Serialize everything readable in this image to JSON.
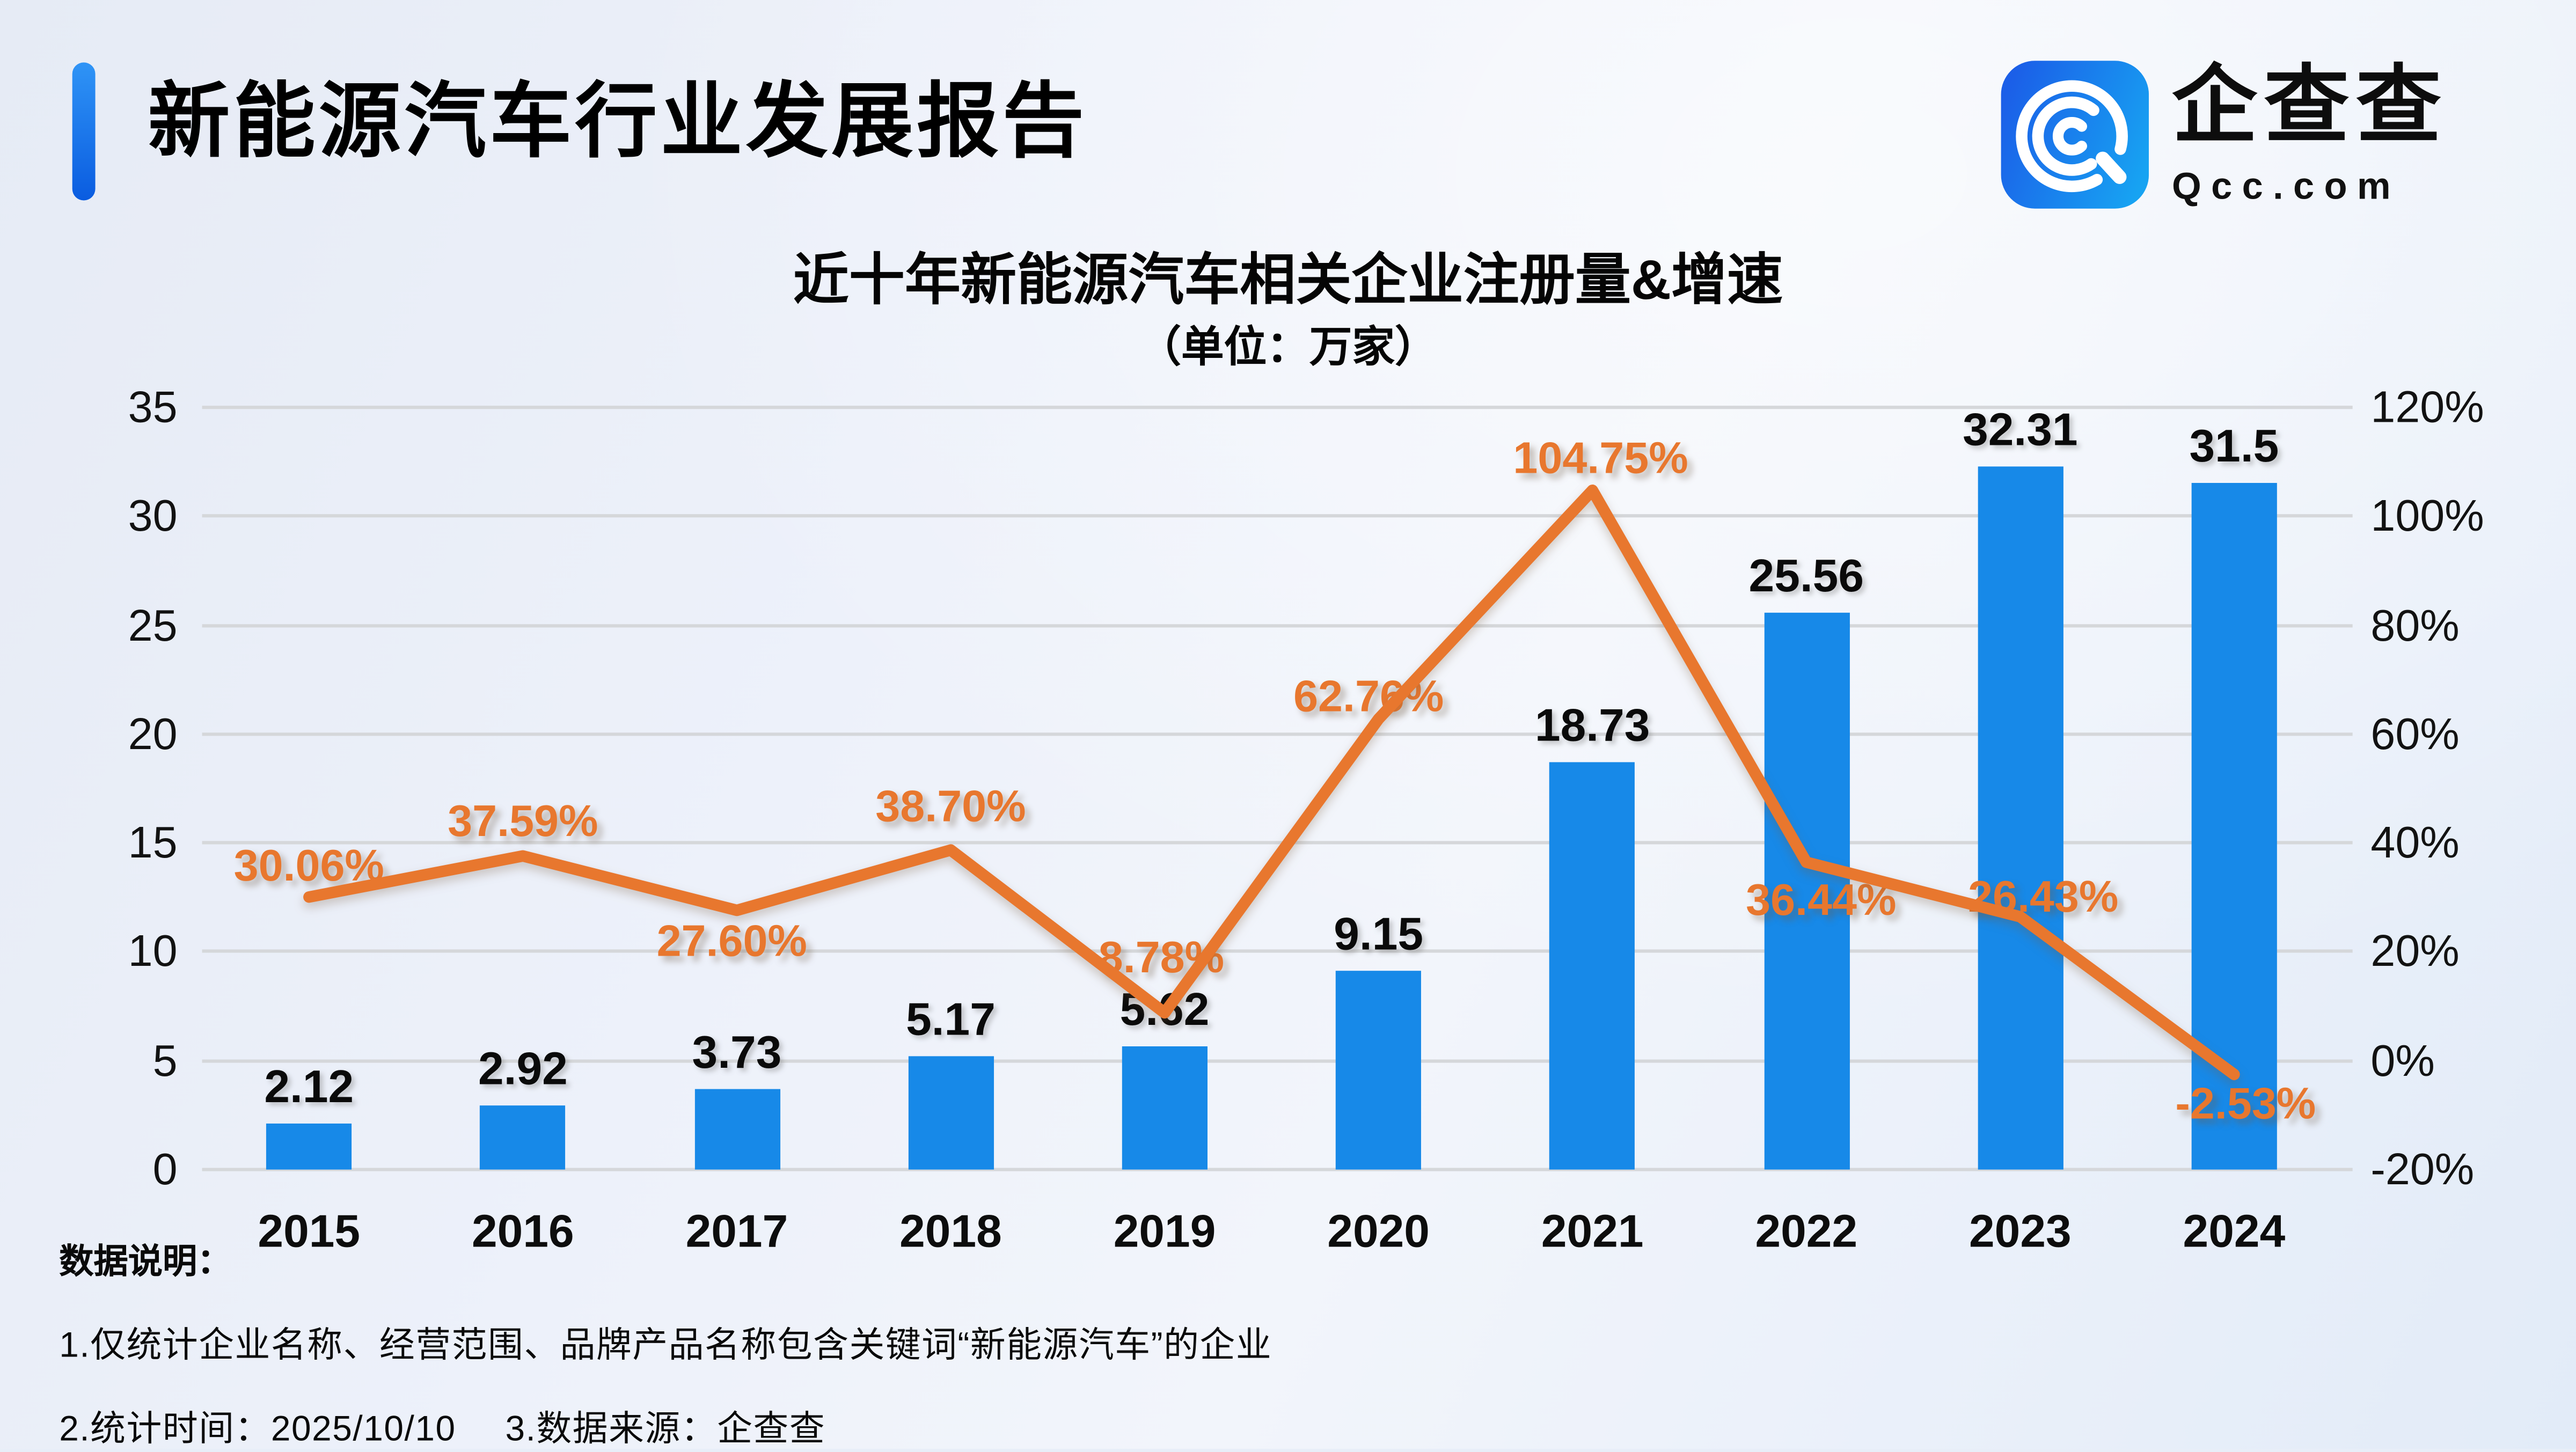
{
  "header": {
    "title": "新能源汽车行业发展报告",
    "brand_name": "企查查",
    "brand_domain": "Qcc.com"
  },
  "chart_data": {
    "type": "bar",
    "title": "近十年新能源汽车相关企业注册量&增速",
    "subtitle": "（单位：万家）",
    "categories": [
      "2015",
      "2016",
      "2017",
      "2018",
      "2019",
      "2020",
      "2021",
      "2022",
      "2023",
      "2024"
    ],
    "series": [
      {
        "name": "注册量（万家）",
        "type": "bar",
        "values": [
          2.12,
          2.92,
          3.73,
          5.17,
          5.62,
          9.15,
          18.73,
          25.56,
          32.31,
          31.5
        ],
        "labels": [
          "2.12",
          "2.92",
          "3.73",
          "5.17",
          "5.62",
          "9.15",
          "18.73",
          "25.56",
          "32.31",
          "31.5"
        ],
        "color": "#1789e8"
      },
      {
        "name": "增速",
        "type": "line",
        "values": [
          30.06,
          37.59,
          27.6,
          38.7,
          8.78,
          62.76,
          104.75,
          36.44,
          26.43,
          -2.53
        ],
        "labels": [
          "30.06%",
          "37.59%",
          "27.60%",
          "38.70%",
          "8.78%",
          "62.76%",
          "104.75%",
          "36.44%",
          "26.43%",
          "-2.53%"
        ],
        "color": "#e8772e"
      }
    ],
    "left_axis": {
      "min": 0,
      "max": 35,
      "ticks": [
        "35",
        "30",
        "25",
        "20",
        "15",
        "10",
        "5",
        "0"
      ]
    },
    "right_axis": {
      "min": -20,
      "max": 120,
      "ticks": [
        "120%",
        "100%",
        "80%",
        "60%",
        "40%",
        "20%",
        "0%",
        "-20%"
      ]
    },
    "grid": true,
    "legend": "none"
  },
  "notes": {
    "heading": "数据说明：",
    "line1": "1.仅统计企业名称、经营范围、品牌产品名称包含关键词“新能源汽车”的企业",
    "line2a": "2.统计时间：2025/10/10",
    "line2b": "3.数据来源：企查查"
  }
}
